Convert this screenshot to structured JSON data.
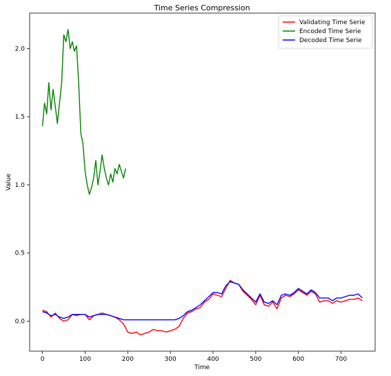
{
  "chart_data": {
    "type": "line",
    "title": "Time Series Compression",
    "xlabel": "Time",
    "ylabel": "Value",
    "xlim": [
      -30,
      780
    ],
    "ylim": [
      -0.22,
      2.26
    ],
    "xticks": [
      0,
      100,
      200,
      300,
      400,
      500,
      600,
      700
    ],
    "yticks": [
      0.0,
      0.5,
      1.0,
      1.5,
      2.0
    ],
    "ytick_labels": [
      "0.0",
      "0.5",
      "1.0",
      "1.5",
      "2.0"
    ],
    "grid": false,
    "legend_position": "top-right",
    "series": [
      {
        "name": "Validating Time Serie",
        "color": "#ff0000",
        "x": [
          0,
          10,
          20,
          30,
          40,
          50,
          60,
          70,
          80,
          90,
          100,
          110,
          120,
          130,
          140,
          150,
          160,
          170,
          180,
          190,
          200,
          210,
          220,
          230,
          240,
          250,
          260,
          270,
          280,
          290,
          300,
          310,
          320,
          330,
          340,
          350,
          360,
          370,
          380,
          390,
          400,
          410,
          420,
          430,
          440,
          450,
          460,
          470,
          480,
          490,
          500,
          510,
          520,
          530,
          540,
          550,
          560,
          570,
          580,
          590,
          600,
          610,
          620,
          630,
          640,
          650,
          660,
          670,
          680,
          690,
          700,
          710,
          720,
          730,
          740,
          750
        ],
        "y": [
          0.08,
          0.07,
          0.03,
          0.06,
          0.02,
          0.0,
          0.01,
          0.05,
          0.04,
          0.05,
          0.05,
          0.01,
          0.04,
          0.05,
          0.06,
          0.05,
          0.04,
          0.03,
          0.01,
          -0.02,
          -0.08,
          -0.09,
          -0.08,
          -0.1,
          -0.09,
          -0.08,
          -0.06,
          -0.07,
          -0.07,
          -0.08,
          -0.07,
          -0.06,
          -0.04,
          0.02,
          0.06,
          0.07,
          0.09,
          0.1,
          0.14,
          0.16,
          0.2,
          0.19,
          0.18,
          0.24,
          0.3,
          0.28,
          0.27,
          0.22,
          0.19,
          0.16,
          0.12,
          0.19,
          0.12,
          0.11,
          0.14,
          0.09,
          0.17,
          0.19,
          0.18,
          0.2,
          0.23,
          0.21,
          0.19,
          0.22,
          0.2,
          0.14,
          0.15,
          0.15,
          0.13,
          0.15,
          0.14,
          0.15,
          0.16,
          0.16,
          0.17,
          0.15
        ]
      },
      {
        "name": "Encoded Time Serie",
        "color": "#008000",
        "x": [
          0,
          5,
          10,
          15,
          20,
          25,
          30,
          35,
          40,
          45,
          50,
          55,
          60,
          65,
          70,
          75,
          80,
          85,
          90,
          95,
          100,
          105,
          110,
          115,
          120,
          125,
          130,
          135,
          140,
          145,
          150,
          155,
          160,
          165,
          170,
          175,
          180,
          185,
          190,
          195
        ],
        "y": [
          1.43,
          1.6,
          1.52,
          1.75,
          1.55,
          1.7,
          1.58,
          1.45,
          1.6,
          1.75,
          2.1,
          2.05,
          2.14,
          2.0,
          2.05,
          1.98,
          2.02,
          1.75,
          1.38,
          1.3,
          1.1,
          1.0,
          0.93,
          0.98,
          1.05,
          1.18,
          1.0,
          1.1,
          1.22,
          1.12,
          1.05,
          1.0,
          1.08,
          1.02,
          1.12,
          1.08,
          1.15,
          1.1,
          1.05,
          1.12
        ]
      },
      {
        "name": "Decoded Time Serie",
        "color": "#0000ff",
        "x": [
          0,
          10,
          20,
          30,
          40,
          50,
          60,
          70,
          80,
          90,
          100,
          110,
          120,
          130,
          140,
          150,
          160,
          170,
          180,
          190,
          200,
          210,
          220,
          230,
          240,
          250,
          260,
          270,
          280,
          290,
          300,
          310,
          320,
          330,
          340,
          350,
          360,
          370,
          380,
          390,
          400,
          410,
          420,
          430,
          440,
          450,
          460,
          470,
          480,
          490,
          500,
          510,
          520,
          530,
          540,
          550,
          560,
          570,
          580,
          590,
          600,
          610,
          620,
          630,
          640,
          650,
          660,
          670,
          680,
          690,
          700,
          710,
          720,
          730,
          740,
          750
        ],
        "y": [
          0.07,
          0.06,
          0.04,
          0.05,
          0.03,
          0.02,
          0.03,
          0.05,
          0.05,
          0.05,
          0.05,
          0.03,
          0.04,
          0.05,
          0.05,
          0.05,
          0.04,
          0.03,
          0.02,
          0.01,
          0.01,
          0.01,
          0.01,
          0.01,
          0.01,
          0.01,
          0.01,
          0.01,
          0.01,
          0.01,
          0.01,
          0.01,
          0.02,
          0.04,
          0.07,
          0.08,
          0.1,
          0.12,
          0.15,
          0.18,
          0.21,
          0.21,
          0.2,
          0.26,
          0.29,
          0.28,
          0.27,
          0.23,
          0.2,
          0.17,
          0.14,
          0.2,
          0.14,
          0.13,
          0.15,
          0.12,
          0.19,
          0.2,
          0.19,
          0.21,
          0.24,
          0.22,
          0.2,
          0.23,
          0.21,
          0.17,
          0.17,
          0.17,
          0.15,
          0.17,
          0.17,
          0.18,
          0.19,
          0.19,
          0.2,
          0.17
        ]
      }
    ]
  }
}
